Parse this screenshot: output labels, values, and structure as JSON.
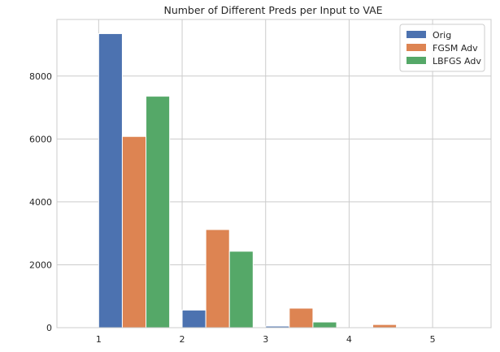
{
  "chart_data": {
    "type": "bar",
    "title": "Number of Different Preds per Input to VAE",
    "xlabel": "",
    "ylabel": "",
    "categories": [
      "1",
      "2",
      "3",
      "4",
      "5"
    ],
    "series": [
      {
        "name": "Orig",
        "color": "#4c72b0",
        "values": [
          9350,
          560,
          50,
          0,
          0
        ]
      },
      {
        "name": "FGSM Adv",
        "color": "#dd8452",
        "values": [
          6080,
          3120,
          620,
          100,
          10
        ]
      },
      {
        "name": "LBFGS Adv",
        "color": "#55a868",
        "values": [
          7360,
          2430,
          180,
          20,
          5
        ]
      }
    ],
    "ylim": [
      0,
      9800
    ],
    "xlim": [
      0.5,
      5.7
    ],
    "yticks": [
      0,
      2000,
      4000,
      6000,
      8000
    ],
    "grid": true,
    "legend_position": "top-right"
  }
}
